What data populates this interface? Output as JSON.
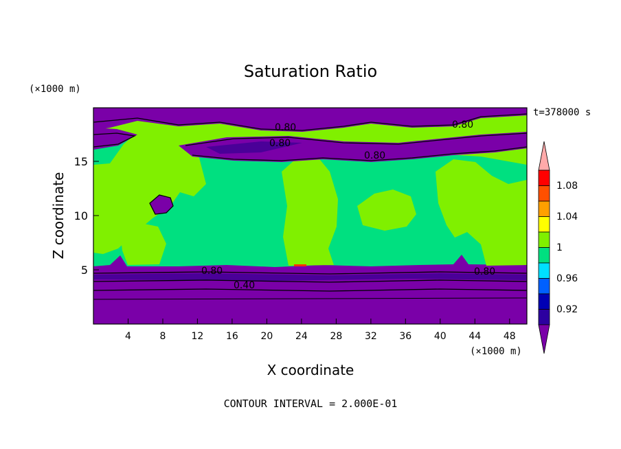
{
  "chart_data": {
    "type": "heatmap",
    "title": "Saturation Ratio",
    "xlabel": "X coordinate",
    "ylabel": "Z coordinate",
    "x_unit": "(×1000 m)",
    "y_unit": "(×1000 m)",
    "time_label": "t=378000 s",
    "footer": "CONTOUR INTERVAL = 2.000E-01",
    "xlim": [
      0,
      50
    ],
    "ylim": [
      0,
      20
    ],
    "x_ticks": [
      "4",
      "8",
      "12",
      "16",
      "20",
      "24",
      "28",
      "32",
      "36",
      "40",
      "44",
      "48"
    ],
    "y_ticks": [
      "5",
      "10",
      "15"
    ],
    "colorbar": {
      "levels": [
        "0.92",
        "0.96",
        "1",
        "1.04",
        "1.08"
      ],
      "colors": [
        "#7a00a8",
        "#2c00a0",
        "#0000b4",
        "#0060ff",
        "#00e0ff",
        "#00e080",
        "#80f000",
        "#ffff00",
        "#ffa000",
        "#ff5000",
        "#ff0000",
        "#ffaaaa"
      ]
    },
    "contour_labels": [
      {
        "text": "0.80",
        "x": 21,
        "z": 18.1
      },
      {
        "text": "0.80",
        "x": 21,
        "z": 16.7
      },
      {
        "text": "0.80",
        "x": 44,
        "z": 18.6
      },
      {
        "text": "0.80",
        "x": 33,
        "z": 15.6
      },
      {
        "text": "0.80",
        "x": 13.5,
        "z": 5.0
      },
      {
        "text": "0.40",
        "x": 17.5,
        "z": 3.7
      },
      {
        "text": "0.80",
        "x": 45,
        "z": 4.9
      }
    ]
  }
}
